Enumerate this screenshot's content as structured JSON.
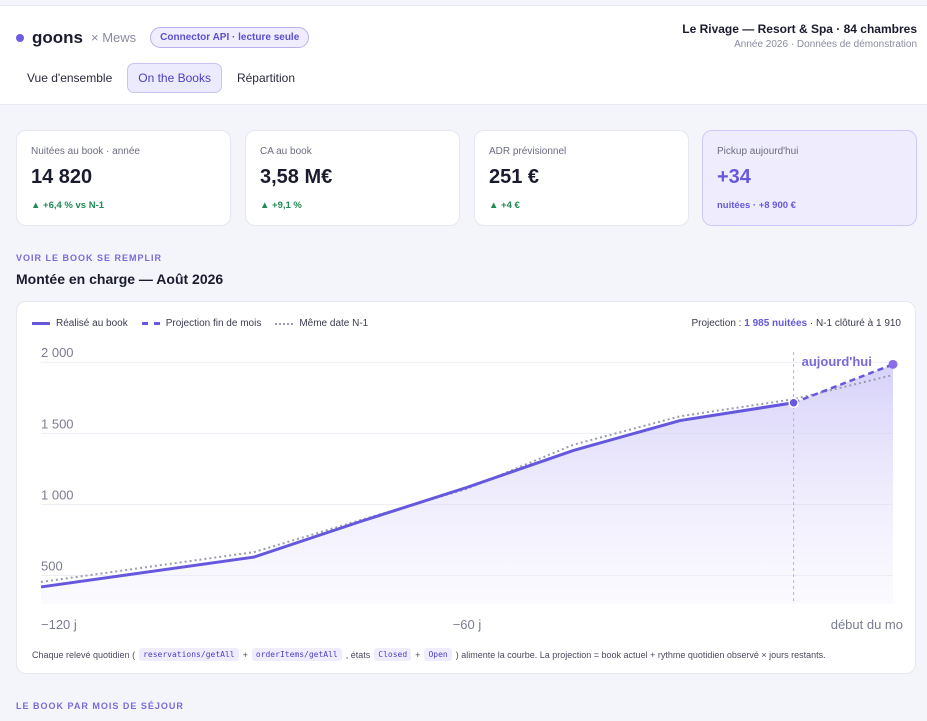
{
  "header": {
    "brand": "goons",
    "separator": "× Mews",
    "api_pill": "Connector API · lecture seule",
    "hotel_name": "Le Rivage — Resort & Spa · 84 chambres",
    "hotel_sub": "Année 2026 · Données de démonstration",
    "tabs": [
      {
        "label": "Vue d'ensemble",
        "active": false
      },
      {
        "label": "On the Books",
        "active": true
      },
      {
        "label": "Répartition",
        "active": false
      }
    ]
  },
  "kpis": [
    {
      "label": "Nuitées au book · année",
      "value": "14 820",
      "delta": "▲ +6,4 % vs N-1"
    },
    {
      "label": "CA au book",
      "value": "3,58 M€",
      "delta": "▲ +9,1 %"
    },
    {
      "label": "ADR prévisionnel",
      "value": "251 €",
      "delta": "▲ +4 €"
    },
    {
      "label": "Pickup aujourd'hui",
      "value": "+34",
      "delta": "nuitées · +8 900 €"
    }
  ],
  "section1": {
    "eyebrow": "VOIR LE BOOK SE REMPLIR",
    "title": "Montée en charge — Août 2026"
  },
  "chart_legend": {
    "realized": "Réalisé au book",
    "projection": "Projection fin de mois",
    "last_year": "Même date N-1",
    "proj_prefix": "Projection : ",
    "proj_value": "1 985 nuitées",
    "proj_suffix": " · N-1 clôturé à 1 910"
  },
  "chart_data": {
    "type": "line",
    "x_label_left": "−120 j",
    "x_label_mid": "−60 j",
    "x_label_right": "début du mo",
    "today_label": "aujourd'hui",
    "xlim": [
      -120,
      0
    ],
    "ylim": [
      300,
      2100
    ],
    "yticks": [
      500,
      1000,
      1500,
      2000
    ],
    "ytick_labels": [
      "500",
      "1 000",
      "1 500",
      "2 000"
    ],
    "today_x": -14,
    "series": [
      {
        "name": "Réalisé au book",
        "style": "solid",
        "x": [
          -120,
          -90,
          -75,
          -60,
          -45,
          -30,
          -14
        ],
        "y": [
          420,
          630,
          880,
          1120,
          1380,
          1590,
          1715
        ]
      },
      {
        "name": "Projection fin de mois",
        "style": "dashed",
        "x": [
          -14,
          0
        ],
        "y": [
          1715,
          1985
        ]
      },
      {
        "name": "Même date N-1",
        "style": "dotted",
        "x": [
          -120,
          -90,
          -75,
          -60,
          -45,
          -30,
          -14,
          0
        ],
        "y": [
          455,
          665,
          890,
          1110,
          1420,
          1620,
          1740,
          1910
        ]
      }
    ],
    "colors": {
      "realized": "#6558dd",
      "projection": "#6558dd",
      "last_year": "#9a9cad"
    }
  },
  "footnote": {
    "prefix": "Chaque relevé quotidien (",
    "code1": "reservations/getAll",
    "plus1": "+",
    "code2": "orderItems/getAll",
    "mid": ", états",
    "code3": "Closed",
    "plus2": "+",
    "code4": "Open",
    "suffix": ") alimente la courbe. La projection = book actuel + rythme quotidien observé × jours restants."
  },
  "section2": {
    "eyebrow": "LE BOOK PAR MOIS DE SÉJOUR"
  }
}
